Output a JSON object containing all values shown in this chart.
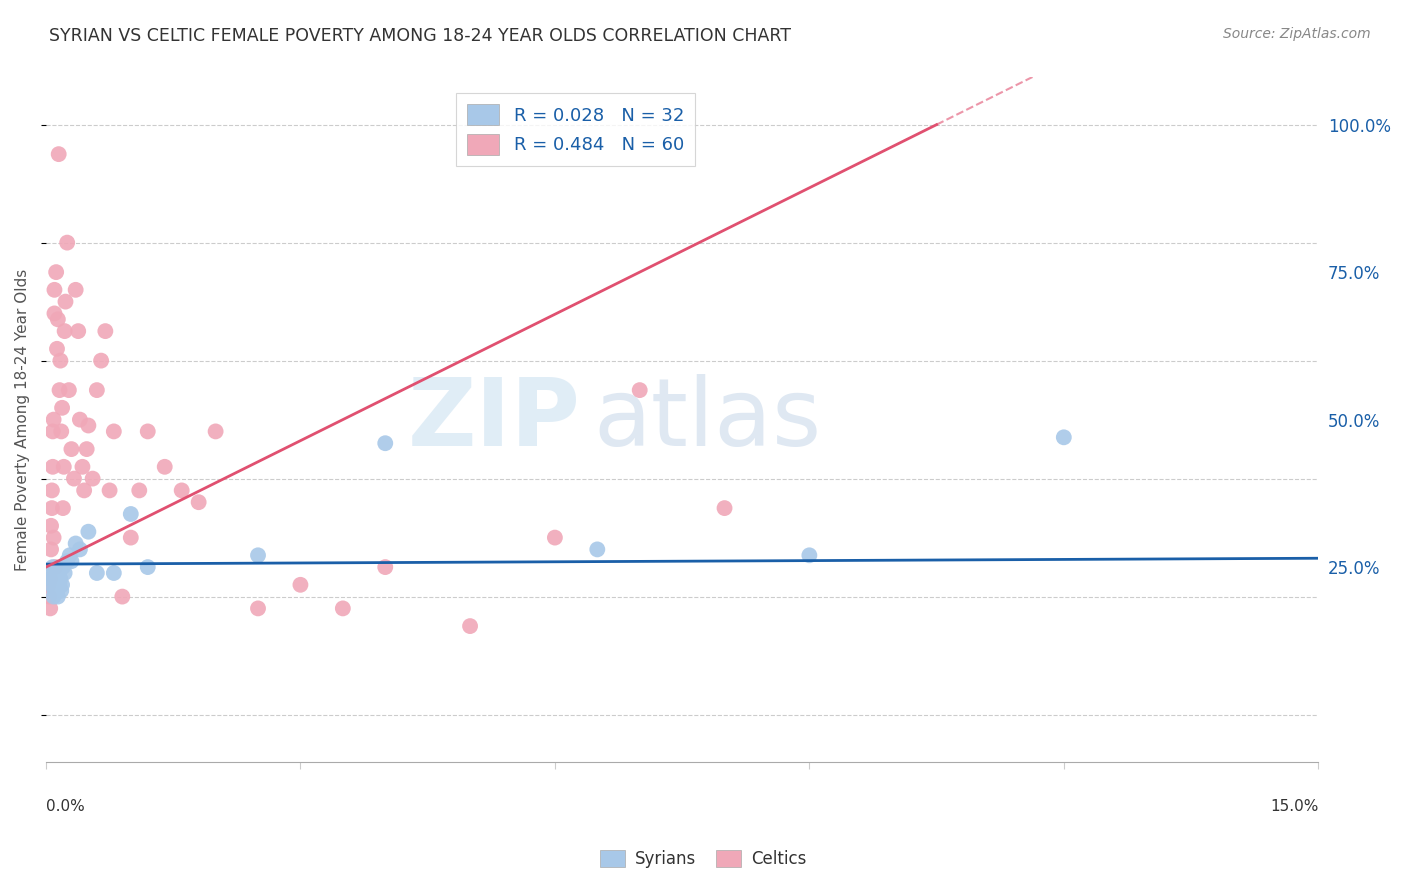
{
  "title": "SYRIAN VS CELTIC FEMALE POVERTY AMONG 18-24 YEAR OLDS CORRELATION CHART",
  "source": "Source: ZipAtlas.com",
  "ylabel": "Female Poverty Among 18-24 Year Olds",
  "watermark_zip": "ZIP",
  "watermark_atlas": "atlas",
  "syrian_color": "#a8c8e8",
  "celtic_color": "#f0a8b8",
  "syrian_line_color": "#1a5fa8",
  "celtic_line_color": "#e05070",
  "right_axis_color": "#1a5fa8",
  "background_color": "#ffffff",
  "grid_color": "#cccccc",
  "title_color": "#333333",
  "source_color": "#888888",
  "legend_text_color": "#1a5fa8",
  "xlim": [
    0.0,
    15.0
  ],
  "ylim": [
    -8,
    108
  ],
  "ytick_vals": [
    25,
    50,
    75,
    100
  ],
  "ytick_labels": [
    "25.0%",
    "50.0%",
    "75.0%",
    "100.0%"
  ],
  "syrians_x": [
    0.05,
    0.06,
    0.07,
    0.08,
    0.09,
    0.1,
    0.11,
    0.12,
    0.13,
    0.14,
    0.15,
    0.16,
    0.17,
    0.18,
    0.19,
    0.2,
    0.22,
    0.25,
    0.28,
    0.3,
    0.35,
    0.4,
    0.5,
    0.6,
    0.8,
    1.0,
    1.2,
    2.5,
    4.0,
    6.5,
    9.0,
    12.0
  ],
  "syrians_y": [
    24,
    23,
    22,
    25,
    20,
    21,
    23,
    22,
    21,
    20,
    24,
    22,
    23,
    21,
    22,
    25,
    24,
    26,
    27,
    26,
    29,
    28,
    31,
    24,
    24,
    34,
    25,
    27,
    46,
    28,
    27,
    47
  ],
  "celtics_x": [
    0.03,
    0.04,
    0.05,
    0.05,
    0.06,
    0.06,
    0.07,
    0.07,
    0.08,
    0.08,
    0.09,
    0.09,
    0.1,
    0.1,
    0.11,
    0.12,
    0.13,
    0.14,
    0.15,
    0.16,
    0.17,
    0.18,
    0.19,
    0.2,
    0.21,
    0.22,
    0.23,
    0.25,
    0.27,
    0.3,
    0.33,
    0.35,
    0.38,
    0.4,
    0.43,
    0.45,
    0.48,
    0.5,
    0.55,
    0.6,
    0.65,
    0.7,
    0.75,
    0.8,
    0.9,
    1.0,
    1.1,
    1.2,
    1.4,
    1.6,
    1.8,
    2.0,
    2.5,
    3.0,
    3.5,
    4.0,
    5.0,
    6.0,
    7.0,
    8.0
  ],
  "celtics_y": [
    22,
    20,
    18,
    23,
    28,
    32,
    38,
    35,
    42,
    48,
    50,
    30,
    68,
    72,
    25,
    75,
    62,
    67,
    95,
    55,
    60,
    48,
    52,
    35,
    42,
    65,
    70,
    80,
    55,
    45,
    40,
    72,
    65,
    50,
    42,
    38,
    45,
    49,
    40,
    55,
    60,
    65,
    38,
    48,
    20,
    30,
    38,
    48,
    42,
    38,
    36,
    48,
    18,
    22,
    18,
    25,
    15,
    30,
    55,
    35
  ],
  "syrian_line_x0": 0.0,
  "syrian_line_y0": 25.5,
  "syrian_line_x1": 15.0,
  "syrian_line_y1": 26.5,
  "celtic_line_x0": 0.0,
  "celtic_line_y0": 25.0,
  "celtic_line_x1": 10.5,
  "celtic_line_y1": 100.0
}
